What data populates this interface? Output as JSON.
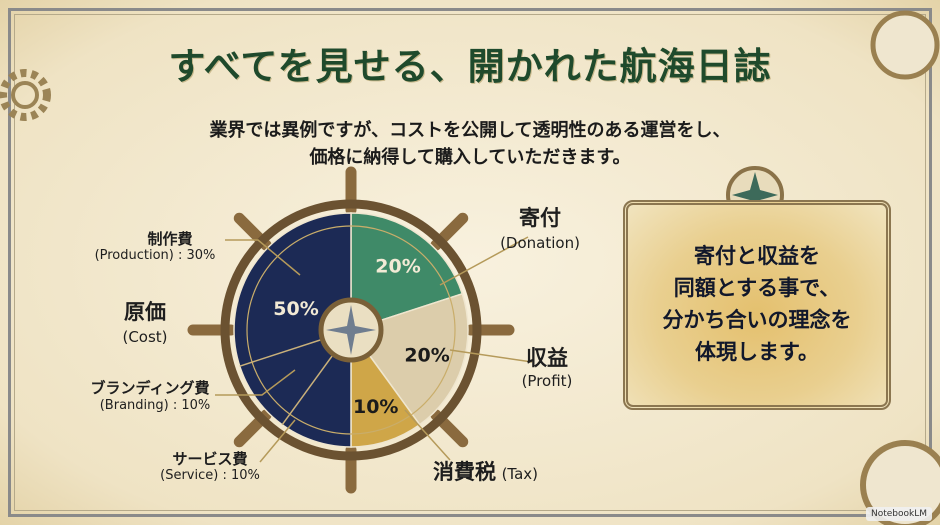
{
  "title": "すべてを見せる、開かれた航海日誌",
  "subtitle": [
    "業界では異例ですが、コストを公開して透明性のある運営をし、",
    "価格に納得して購入していただきます。"
  ],
  "labels": {
    "production_jp": "制作費",
    "production_en": "(Production) : 30%",
    "cost_jp": "原価",
    "cost_en": "(Cost)",
    "branding_jp": "ブランディング費",
    "branding_en": "(Branding) : 10%",
    "service_jp": "サービス費",
    "service_en": "(Service) : 10%",
    "donation_jp": "寄付",
    "donation_en": "(Donation)",
    "profit_jp": "収益",
    "profit_en": "(Profit)",
    "tax_jp": "消費税",
    "tax_en": "(Tax)"
  },
  "callout": [
    "寄付と収益を",
    "同額とする事で、",
    "分かち合いの理念を",
    "体現します。"
  ],
  "watermark": "NotebookLM",
  "chart_data": {
    "type": "pie",
    "start": "top",
    "direction": "clockwise",
    "slices": [
      {
        "name": "寄付 (Donation)",
        "value": 20,
        "label": "20%",
        "color": "#3f8a68"
      },
      {
        "name": "収益 (Profit)",
        "value": 20,
        "label": "20%",
        "color": "#dccdab"
      },
      {
        "name": "消費税 (Tax)",
        "value": 10,
        "label": "10%",
        "color": "#cfa648"
      },
      {
        "name": "原価 (Cost)",
        "value": 50,
        "label": "50%",
        "color": "#1c2a55",
        "subdivisions": [
          {
            "name": "サービス費 (Service)",
            "value": 10
          },
          {
            "name": "ブランディング費 (Branding)",
            "value": 10
          },
          {
            "name": "制作費 (Production)",
            "value": 30
          }
        ]
      }
    ]
  }
}
